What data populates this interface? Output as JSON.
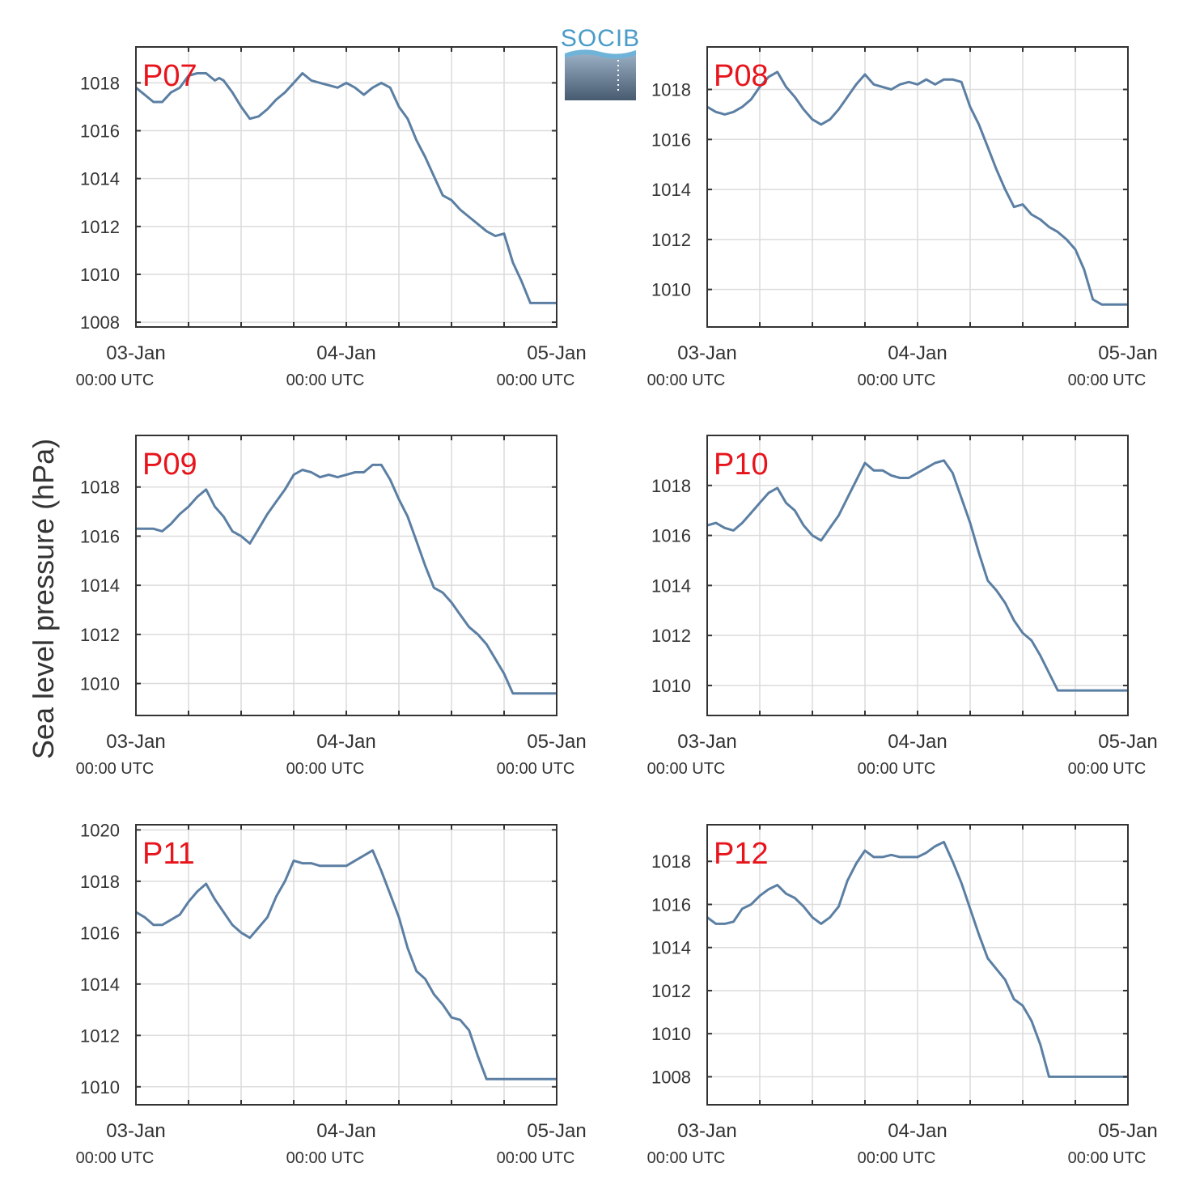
{
  "figure": {
    "ylabel": "Sea level pressure (hPa)",
    "logo_text": "SOCIB",
    "line_color": "#5b7fa3",
    "label_color": "#e8141c",
    "grid_color": "#dcdcdc",
    "axis_color": "#333333"
  },
  "chart_data": [
    {
      "type": "line",
      "label": "P07",
      "xlim": [
        0,
        48
      ],
      "ylim": [
        1007.8,
        1019.5
      ],
      "grid": true,
      "yticks": [
        1008,
        1010,
        1012,
        1014,
        1016,
        1018
      ],
      "xticks": [
        {
          "x": 0,
          "date": "03-Jan",
          "time": "00:00 UTC"
        },
        {
          "x": 24,
          "date": "04-Jan",
          "time": "00:00 UTC"
        },
        {
          "x": 48,
          "date": "05-Jan",
          "time": "00:00 UTC"
        }
      ],
      "series": [
        {
          "x": [
            0,
            1,
            2,
            3,
            4,
            5,
            6,
            7,
            8,
            9,
            9.5,
            10,
            11,
            12,
            13,
            14,
            15,
            16,
            17,
            18,
            19,
            20,
            21,
            22,
            23,
            24,
            25,
            26,
            27,
            28,
            29,
            30,
            31,
            32,
            33,
            34,
            35,
            36,
            37,
            38,
            39,
            40,
            41,
            42,
            43,
            44,
            45,
            46,
            47,
            48
          ],
          "y": [
            1017.8,
            1017.5,
            1017.2,
            1017.2,
            1017.6,
            1017.8,
            1018.3,
            1018.4,
            1018.4,
            1018.1,
            1018.2,
            1018.1,
            1017.6,
            1017.0,
            1016.5,
            1016.6,
            1016.9,
            1017.3,
            1017.6,
            1018.0,
            1018.4,
            1018.1,
            1018.0,
            1017.9,
            1017.8,
            1018.0,
            1017.8,
            1017.5,
            1017.8,
            1018.0,
            1017.8,
            1017.0,
            1016.5,
            1015.6,
            1014.9,
            1014.1,
            1013.3,
            1013.1,
            1012.7,
            1012.4,
            1012.1,
            1011.8,
            1011.6,
            1011.7,
            1010.5,
            1009.7,
            1008.8,
            1008.8,
            1008.8,
            1008.8
          ]
        }
      ]
    },
    {
      "type": "line",
      "label": "P08",
      "xlim": [
        0,
        48
      ],
      "ylim": [
        1008.5,
        1019.7
      ],
      "grid": true,
      "yticks": [
        1010,
        1012,
        1014,
        1016,
        1018
      ],
      "xticks": [
        {
          "x": 0,
          "date": "03-Jan",
          "time": "00:00 UTC"
        },
        {
          "x": 24,
          "date": "04-Jan",
          "time": "00:00 UTC"
        },
        {
          "x": 48,
          "date": "05-Jan",
          "time": "00:00 UTC"
        }
      ],
      "series": [
        {
          "x": [
            0,
            1,
            2,
            3,
            4,
            5,
            6,
            7,
            8,
            9,
            10,
            11,
            12,
            13,
            14,
            15,
            16,
            17,
            18,
            19,
            20,
            21,
            22,
            23,
            24,
            25,
            26,
            27,
            28,
            29,
            30,
            31,
            32,
            33,
            34,
            35,
            36,
            37,
            38,
            39,
            40,
            41,
            42,
            43,
            44,
            45,
            46,
            47,
            48
          ],
          "y": [
            1017.3,
            1017.1,
            1017.0,
            1017.1,
            1017.3,
            1017.6,
            1018.1,
            1018.5,
            1018.7,
            1018.1,
            1017.7,
            1017.2,
            1016.8,
            1016.6,
            1016.8,
            1017.2,
            1017.7,
            1018.2,
            1018.6,
            1018.2,
            1018.1,
            1018.0,
            1018.2,
            1018.3,
            1018.2,
            1018.4,
            1018.2,
            1018.4,
            1018.4,
            1018.3,
            1017.3,
            1016.6,
            1015.7,
            1014.8,
            1014.0,
            1013.3,
            1013.4,
            1013.0,
            1012.8,
            1012.5,
            1012.3,
            1012.0,
            1011.6,
            1010.8,
            1009.6,
            1009.4,
            1009.4,
            1009.4,
            1009.4
          ]
        }
      ]
    },
    {
      "type": "line",
      "label": "P09",
      "xlim": [
        0,
        48
      ],
      "ylim": [
        1008.7,
        1020.1
      ],
      "grid": true,
      "yticks": [
        1010,
        1012,
        1014,
        1016,
        1018
      ],
      "xticks": [
        {
          "x": 0,
          "date": "03-Jan",
          "time": "00:00 UTC"
        },
        {
          "x": 24,
          "date": "04-Jan",
          "time": "00:00 UTC"
        },
        {
          "x": 48,
          "date": "05-Jan",
          "time": "00:00 UTC"
        }
      ],
      "series": [
        {
          "x": [
            0,
            1,
            2,
            3,
            4,
            5,
            6,
            7,
            8,
            9,
            10,
            11,
            12,
            13,
            14,
            15,
            16,
            17,
            18,
            19,
            20,
            21,
            22,
            23,
            24,
            25,
            26,
            27,
            28,
            29,
            30,
            31,
            32,
            33,
            34,
            35,
            36,
            37,
            38,
            39,
            40,
            41,
            42,
            43,
            44,
            45,
            46,
            47,
            48
          ],
          "y": [
            1016.3,
            1016.3,
            1016.3,
            1016.2,
            1016.5,
            1016.9,
            1017.2,
            1017.6,
            1017.9,
            1017.2,
            1016.8,
            1016.2,
            1016.0,
            1015.7,
            1016.3,
            1016.9,
            1017.4,
            1017.9,
            1018.5,
            1018.7,
            1018.6,
            1018.4,
            1018.5,
            1018.4,
            1018.5,
            1018.6,
            1018.6,
            1018.9,
            1018.9,
            1018.3,
            1017.5,
            1016.8,
            1015.8,
            1014.8,
            1013.9,
            1013.7,
            1013.3,
            1012.8,
            1012.3,
            1012.0,
            1011.6,
            1011.0,
            1010.4,
            1009.6,
            1009.6,
            1009.6,
            1009.6,
            1009.6,
            1009.6
          ]
        }
      ]
    },
    {
      "type": "line",
      "label": "P10",
      "xlim": [
        0,
        48
      ],
      "ylim": [
        1008.8,
        1020.0
      ],
      "grid": true,
      "yticks": [
        1010,
        1012,
        1014,
        1016,
        1018
      ],
      "xticks": [
        {
          "x": 0,
          "date": "03-Jan",
          "time": "00:00 UTC"
        },
        {
          "x": 24,
          "date": "04-Jan",
          "time": "00:00 UTC"
        },
        {
          "x": 48,
          "date": "05-Jan",
          "time": "00:00 UTC"
        }
      ],
      "series": [
        {
          "x": [
            0,
            1,
            2,
            3,
            4,
            5,
            6,
            7,
            8,
            9,
            10,
            11,
            12,
            13,
            14,
            15,
            16,
            17,
            18,
            19,
            20,
            21,
            22,
            23,
            24,
            25,
            26,
            27,
            28,
            29,
            30,
            31,
            32,
            33,
            34,
            35,
            36,
            37,
            38,
            39,
            40,
            41,
            42,
            43,
            44,
            45,
            46,
            47,
            48
          ],
          "y": [
            1016.4,
            1016.5,
            1016.3,
            1016.2,
            1016.5,
            1016.9,
            1017.3,
            1017.7,
            1017.9,
            1017.3,
            1017.0,
            1016.4,
            1016.0,
            1015.8,
            1016.3,
            1016.8,
            1017.5,
            1018.2,
            1018.9,
            1018.6,
            1018.6,
            1018.4,
            1018.3,
            1018.3,
            1018.5,
            1018.7,
            1018.9,
            1019.0,
            1018.5,
            1017.5,
            1016.5,
            1015.3,
            1014.2,
            1013.8,
            1013.3,
            1012.6,
            1012.1,
            1011.8,
            1011.2,
            1010.5,
            1009.8,
            1009.8,
            1009.8,
            1009.8,
            1009.8,
            1009.8,
            1009.8,
            1009.8,
            1009.8
          ]
        }
      ]
    },
    {
      "type": "line",
      "label": "P11",
      "xlim": [
        0,
        48
      ],
      "ylim": [
        1009.3,
        1020.2
      ],
      "grid": true,
      "yticks": [
        1010,
        1012,
        1014,
        1016,
        1018,
        1020
      ],
      "xticks": [
        {
          "x": 0,
          "date": "03-Jan",
          "time": "00:00 UTC"
        },
        {
          "x": 24,
          "date": "04-Jan",
          "time": "00:00 UTC"
        },
        {
          "x": 48,
          "date": "05-Jan",
          "time": "00:00 UTC"
        }
      ],
      "series": [
        {
          "x": [
            0,
            1,
            2,
            3,
            4,
            5,
            6,
            7,
            8,
            9,
            10,
            11,
            12,
            13,
            14,
            15,
            16,
            17,
            18,
            19,
            20,
            21,
            22,
            23,
            24,
            25,
            26,
            27,
            28,
            29,
            30,
            31,
            32,
            33,
            34,
            35,
            36,
            37,
            38,
            39,
            40,
            41,
            42,
            43,
            44,
            45,
            46,
            47,
            48
          ],
          "y": [
            1016.8,
            1016.6,
            1016.3,
            1016.3,
            1016.5,
            1016.7,
            1017.2,
            1017.6,
            1017.9,
            1017.3,
            1016.8,
            1016.3,
            1016.0,
            1015.8,
            1016.2,
            1016.6,
            1017.4,
            1018.0,
            1018.8,
            1018.7,
            1018.7,
            1018.6,
            1018.6,
            1018.6,
            1018.6,
            1018.8,
            1019.0,
            1019.2,
            1018.4,
            1017.5,
            1016.6,
            1015.4,
            1014.5,
            1014.2,
            1013.6,
            1013.2,
            1012.7,
            1012.6,
            1012.2,
            1011.2,
            1010.3,
            1010.3,
            1010.3,
            1010.3,
            1010.3,
            1010.3,
            1010.3,
            1010.3,
            1010.3
          ]
        }
      ]
    },
    {
      "type": "line",
      "label": "P12",
      "xlim": [
        0,
        48
      ],
      "ylim": [
        1006.7,
        1019.7
      ],
      "grid": true,
      "yticks": [
        1008,
        1010,
        1012,
        1014,
        1016,
        1018
      ],
      "xticks": [
        {
          "x": 0,
          "date": "03-Jan",
          "time": "00:00 UTC"
        },
        {
          "x": 24,
          "date": "04-Jan",
          "time": "00:00 UTC"
        },
        {
          "x": 48,
          "date": "05-Jan",
          "time": "00:00 UTC"
        }
      ],
      "series": [
        {
          "x": [
            0,
            1,
            2,
            3,
            4,
            5,
            6,
            7,
            8,
            9,
            10,
            11,
            12,
            13,
            14,
            15,
            16,
            17,
            18,
            19,
            20,
            21,
            22,
            23,
            24,
            25,
            26,
            27,
            28,
            29,
            30,
            31,
            32,
            33,
            34,
            35,
            36,
            37,
            38,
            39,
            40,
            41,
            42,
            43,
            44,
            45,
            46,
            47,
            48
          ],
          "y": [
            1015.4,
            1015.1,
            1015.1,
            1015.2,
            1015.8,
            1016.0,
            1016.4,
            1016.7,
            1016.9,
            1016.5,
            1016.3,
            1015.9,
            1015.4,
            1015.1,
            1015.4,
            1015.9,
            1017.1,
            1017.9,
            1018.5,
            1018.2,
            1018.2,
            1018.3,
            1018.2,
            1018.2,
            1018.2,
            1018.4,
            1018.7,
            1018.9,
            1018.0,
            1017.0,
            1015.8,
            1014.6,
            1013.5,
            1013.0,
            1012.5,
            1011.6,
            1011.3,
            1010.6,
            1009.5,
            1008.0,
            1008.0,
            1008.0,
            1008.0,
            1008.0,
            1008.0,
            1008.0,
            1008.0,
            1008.0,
            1008.0
          ]
        }
      ]
    }
  ]
}
